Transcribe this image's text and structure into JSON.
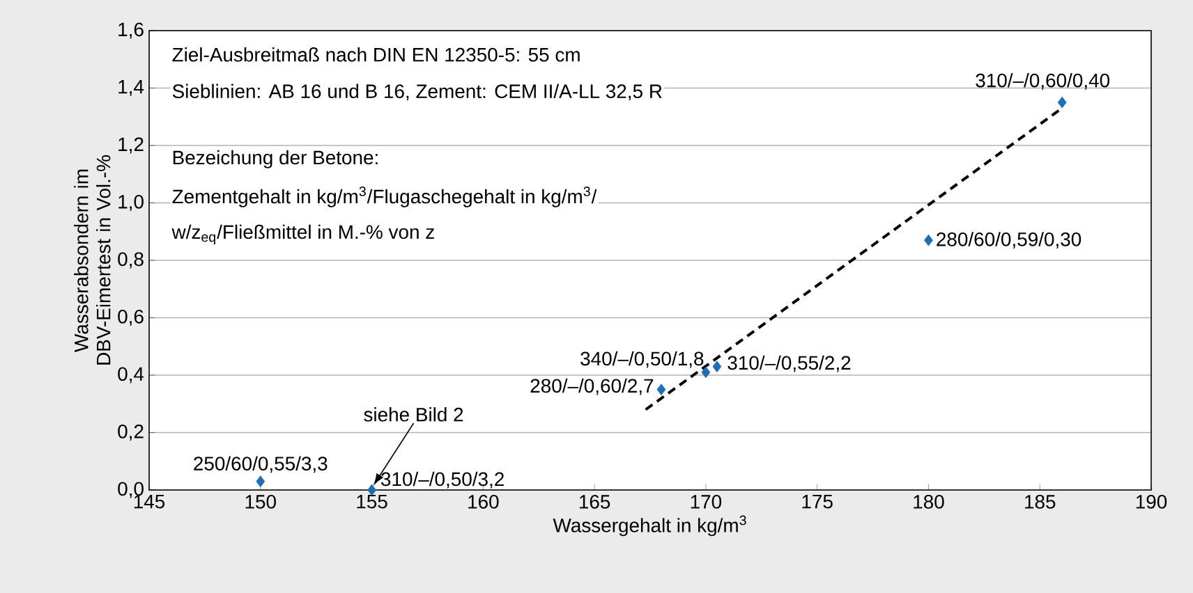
{
  "chart_data": {
    "type": "scatter",
    "xlabel": "Wassergehalt in kg/m$^{3}$",
    "ylabel": "Wasserabsondern im DBV-Eimertest in Vol.-%",
    "xlim": [
      145,
      190
    ],
    "xticks": [
      145,
      150,
      155,
      160,
      165,
      170,
      175,
      180,
      185,
      190
    ],
    "ylim": [
      0,
      1.6
    ],
    "yticks": [
      {
        "value": 0,
        "label": "0,0"
      },
      {
        "value": 0.2,
        "label": "0,2"
      },
      {
        "value": 0.4,
        "label": "0,4"
      },
      {
        "value": 0.6,
        "label": "0,6"
      },
      {
        "value": 0.8,
        "label": "0,8"
      },
      {
        "value": 1.0,
        "label": "1,0"
      },
      {
        "value": 1.2,
        "label": "1,2"
      },
      {
        "value": 1.4,
        "label": "1,4"
      },
      {
        "value": 1.6,
        "label": "1,6"
      }
    ],
    "grid": "y",
    "marker": "diamond",
    "series": [
      {
        "color": "#1f6db3",
        "x": [
          150,
          155,
          168,
          170,
          170.5,
          180,
          186
        ],
        "values": [
          0.03,
          0.0,
          0.35,
          0.41,
          0.43,
          0.87,
          1.35
        ]
      },
      {
        "type": "line",
        "color": "#000000",
        "line_style": "dashed",
        "marker": "none",
        "x": [
          167.3,
          186
        ],
        "values": [
          0.28,
          1.33
        ]
      }
    ],
    "annotations": [
      "Ziel-Ausbreitmaß nach DIN EN 12350-5: 55 cm",
      "Sieblinien: AB 16 und B 16, Zement: CEM II/A-LL 32,5 R",
      "Bezeichung der Betone:",
      "Zementgehalt in kg/m$^{3}$/Flugaschegehalt in kg/m$^{3}$/",
      "w/z$_{eq}$/Fließmittel in M.-% von z",
      {
        "text": "310/–/0,60/0,40",
        "x": 186,
        "y": 1.35
      },
      {
        "text": "280/60/0,59/0,30",
        "x": 180,
        "y": 0.87
      },
      {
        "text": "340/–/0,50/1,8",
        "x": 170,
        "y": 0.41
      },
      {
        "text": "310/–/0,55/2,2",
        "x": 170.5,
        "y": 0.43
      },
      {
        "text": "280/–/0,60/2,7",
        "x": 168,
        "y": 0.35
      },
      {
        "text": "250/60/0,55/3,3",
        "x": 150,
        "y": 0.03
      },
      {
        "text": "310/–/0,50/3,2",
        "x": 155,
        "y": 0.0
      },
      "siehe Bild 2"
    ]
  }
}
